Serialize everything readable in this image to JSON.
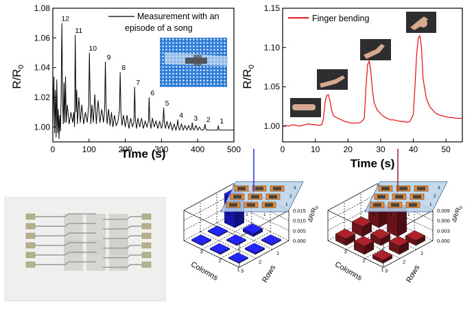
{
  "colors": {
    "song_line": "#000000",
    "finger_line": "#e8191e",
    "bar_blue": "#1d1de8",
    "bar_red": "#8a1a22",
    "photo_bg": "#efefed",
    "substrate_blue": "#2d7bd6"
  },
  "chart_data": [
    {
      "type": "line",
      "xlabel": "Time (s)",
      "ylabel": "R/R",
      "ylabel_sub": "0",
      "xlim": [
        0,
        500
      ],
      "ylim": [
        0.99,
        1.08
      ],
      "xticks": [
        0,
        100,
        200,
        300,
        400,
        500
      ],
      "yticks": [
        1.0,
        1.02,
        1.04,
        1.06,
        1.08
      ],
      "ytick_labels": [
        "1.00",
        "1.02",
        "1.04",
        "1.06",
        "1.08"
      ],
      "legend": "Measurement with an\nepisode of a song",
      "legend_line1": "Measurement with an",
      "legend_line2": "episode of a song",
      "legend_position": "top-right",
      "series": [
        {
          "x": [
            0,
            3,
            5,
            7,
            9,
            11,
            13,
            15,
            17,
            19,
            21,
            23,
            25,
            27,
            29,
            31,
            33,
            35,
            37,
            40,
            45,
            50,
            55,
            58,
            60,
            62,
            64,
            66,
            68,
            72,
            76,
            80,
            85,
            90,
            95,
            99,
            101,
            103,
            105,
            108,
            112,
            116,
            120,
            125,
            130,
            135,
            140,
            143,
            145,
            147,
            150,
            154,
            158,
            162,
            166,
            170,
            175,
            180,
            184,
            186,
            188,
            191,
            195,
            200,
            205,
            210,
            215,
            220,
            224,
            226,
            228,
            231,
            235,
            240,
            245,
            250,
            255,
            260,
            264,
            266,
            268,
            271,
            275,
            280,
            285,
            290,
            295,
            300,
            304,
            306,
            308,
            311,
            315,
            320,
            325,
            330,
            335,
            340,
            343,
            345,
            347,
            350,
            355,
            360,
            365,
            370,
            375,
            380,
            383,
            385,
            387,
            390,
            395,
            400,
            405,
            410,
            415,
            418,
            420,
            422,
            425,
            430,
            440,
            450,
            455,
            457,
            459,
            462,
            470,
            480,
            490,
            500
          ],
          "y": [
            0.998,
            1.034,
            0.996,
            1.025,
            0.993,
            1.032,
            0.996,
            1.012,
            0.992,
            1.008,
            0.997,
            1.02,
            1.07,
            1.018,
            1.002,
            1.03,
            1.003,
            1.034,
            1.003,
            1.015,
            1.002,
            1.01,
            1.003,
            1.01,
            1.0,
            1.062,
            1.01,
            1.025,
            1.002,
            1.02,
            1.003,
            1.015,
            1.002,
            1.01,
            1.003,
            1.015,
            1.05,
            1.02,
            1.002,
            1.015,
            1.003,
            1.022,
            1.002,
            1.018,
            1.003,
            1.012,
            1.003,
            1.012,
            1.044,
            1.015,
            1.002,
            1.012,
            1.001,
            1.01,
            1.0,
            1.008,
            1.001,
            1.004,
            1.012,
            1.037,
            1.01,
            1.001,
            1.008,
            1.0,
            1.008,
            0.999,
            1.006,
            1.0,
            1.004,
            1.027,
            1.005,
            0.999,
            1.006,
            1.0,
            1.006,
            0.999,
            1.004,
            1.0,
            1.004,
            1.02,
            1.004,
            0.999,
            1.006,
            1.0,
            1.004,
            0.999,
            1.004,
            0.999,
            1.003,
            1.013,
            1.003,
            0.999,
            1.004,
            0.999,
            1.003,
            0.998,
            1.002,
            0.998,
            1.001,
            1.005,
            1.0,
            0.998,
            1.002,
            0.998,
            1.001,
            0.998,
            1.001,
            0.998,
            0.999,
            1.003,
            0.999,
            0.998,
            1.001,
            0.998,
            1.0,
            0.998,
            0.998,
            0.999,
            1.002,
            0.999,
            0.998,
            0.998,
            0.998,
            0.998,
            0.998,
            1.001,
            0.998,
            0.998,
            0.998,
            0.998,
            0.998,
            0.998
          ]
        }
      ],
      "annotations": [
        {
          "label": "12",
          "x": 25,
          "y": 1.07
        },
        {
          "label": "11",
          "x": 62,
          "y": 1.062
        },
        {
          "label": "10",
          "x": 101,
          "y": 1.05
        },
        {
          "label": "9",
          "x": 145,
          "y": 1.044
        },
        {
          "label": "8",
          "x": 186,
          "y": 1.037
        },
        {
          "label": "7",
          "x": 226,
          "y": 1.027
        },
        {
          "label": "6",
          "x": 266,
          "y": 1.02
        },
        {
          "label": "5",
          "x": 306,
          "y": 1.013
        },
        {
          "label": "4",
          "x": 345,
          "y": 1.005
        },
        {
          "label": "3",
          "x": 385,
          "y": 1.003
        },
        {
          "label": "2",
          "x": 420,
          "y": 1.002
        },
        {
          "label": "1",
          "x": 457,
          "y": 1.001
        }
      ]
    },
    {
      "type": "line",
      "xlabel": "Time (s)",
      "ylabel": "R/R",
      "ylabel_sub": "0",
      "xlim": [
        0,
        55
      ],
      "ylim": [
        0.98,
        1.15
      ],
      "xticks": [
        0,
        10,
        20,
        30,
        40,
        50
      ],
      "yticks": [
        1.0,
        1.05,
        1.1,
        1.15
      ],
      "ytick_labels": [
        "1.00",
        "1.05",
        "1.10",
        "1.15"
      ],
      "legend": "Finger bending",
      "legend_position": "top-left",
      "series": [
        {
          "name": "Finger bending",
          "x": [
            0,
            1,
            2,
            3,
            4,
            5,
            6,
            7,
            8,
            9,
            10,
            11,
            12,
            12.5,
            13,
            13.5,
            14,
            14.5,
            15,
            15.5,
            16,
            17,
            18,
            19,
            20,
            21,
            22,
            23,
            24,
            25,
            25.5,
            26,
            26.5,
            27,
            27.5,
            28,
            29,
            30,
            31,
            32,
            33,
            34,
            35,
            36,
            37,
            38,
            39,
            40,
            40.5,
            41,
            41.5,
            42,
            42.5,
            43,
            44,
            45,
            46,
            47,
            48,
            49,
            50,
            51,
            52,
            53,
            54,
            55
          ],
          "y": [
            1.0,
            1.001,
            1.0,
            1.002,
            1.001,
            1.0,
            1.001,
            1.002,
            1.003,
            1.002,
            1.002,
            1.001,
            1.002,
            1.01,
            1.03,
            1.039,
            1.04,
            1.032,
            1.02,
            1.014,
            1.012,
            1.01,
            1.008,
            1.006,
            1.005,
            1.004,
            1.004,
            1.004,
            1.005,
            1.01,
            1.05,
            1.078,
            1.083,
            1.07,
            1.045,
            1.03,
            1.02,
            1.016,
            1.012,
            1.01,
            1.008,
            1.008,
            1.007,
            1.006,
            1.006,
            1.005,
            1.006,
            1.015,
            1.05,
            1.09,
            1.112,
            1.115,
            1.1,
            1.06,
            1.035,
            1.025,
            1.02,
            1.016,
            1.014,
            1.013,
            1.012,
            1.011,
            1.011,
            1.01,
            1.01,
            1.01
          ]
        }
      ]
    },
    {
      "type": "bar",
      "xlabel": "Colomns",
      "ylabel": "Rows",
      "zlabel": "ΔR/R",
      "zlabel_sub": "0",
      "zlim": [
        0,
        0.015
      ],
      "zticks": [
        "0.000",
        "0.005",
        "0.010",
        "0.015"
      ],
      "row_ticks": [
        "1",
        "2",
        "3"
      ],
      "col_ticks": [
        "1",
        "2",
        "3"
      ],
      "inset_labels": [
        "3",
        "2",
        "1",
        "3",
        "2",
        "1"
      ],
      "cells": [
        {
          "row": 1,
          "col": 1,
          "value": 0.0004
        },
        {
          "row": 2,
          "col": 1,
          "value": 0.0006
        },
        {
          "row": 3,
          "col": 1,
          "value": 0.0005
        },
        {
          "row": 1,
          "col": 2,
          "value": 0.0007
        },
        {
          "row": 2,
          "col": 2,
          "value": 0.0005
        },
        {
          "row": 3,
          "col": 2,
          "value": 0.0005
        },
        {
          "row": 1,
          "col": 3,
          "value": 0.0005
        },
        {
          "row": 2,
          "col": 3,
          "value": 0.0015
        },
        {
          "row": 3,
          "col": 3,
          "value": 0.0145
        }
      ]
    },
    {
      "type": "bar",
      "xlabel": "Colomns",
      "ylabel": "Rows",
      "zlabel": "ΔR/R",
      "zlabel_sub": "0",
      "zlim": [
        0,
        0.009
      ],
      "zticks": [
        "0.000",
        "0.003",
        "0.006",
        "0.009"
      ],
      "row_ticks": [
        "1",
        "2",
        "3"
      ],
      "col_ticks": [
        "1",
        "2",
        "3"
      ],
      "inset_labels": [
        "3",
        "2",
        "1",
        "3",
        "2",
        "1"
      ],
      "cells": [
        {
          "row": 1,
          "col": 1,
          "value": 0.001
        },
        {
          "row": 2,
          "col": 1,
          "value": 0.0025
        },
        {
          "row": 3,
          "col": 1,
          "value": 0.002
        },
        {
          "row": 1,
          "col": 2,
          "value": 0.0025
        },
        {
          "row": 2,
          "col": 2,
          "value": 0.002
        },
        {
          "row": 3,
          "col": 2,
          "value": 0.003
        },
        {
          "row": 1,
          "col": 3,
          "value": 0.0015
        },
        {
          "row": 2,
          "col": 3,
          "value": 0.0075
        },
        {
          "row": 3,
          "col": 3,
          "value": 0.005
        }
      ]
    }
  ]
}
